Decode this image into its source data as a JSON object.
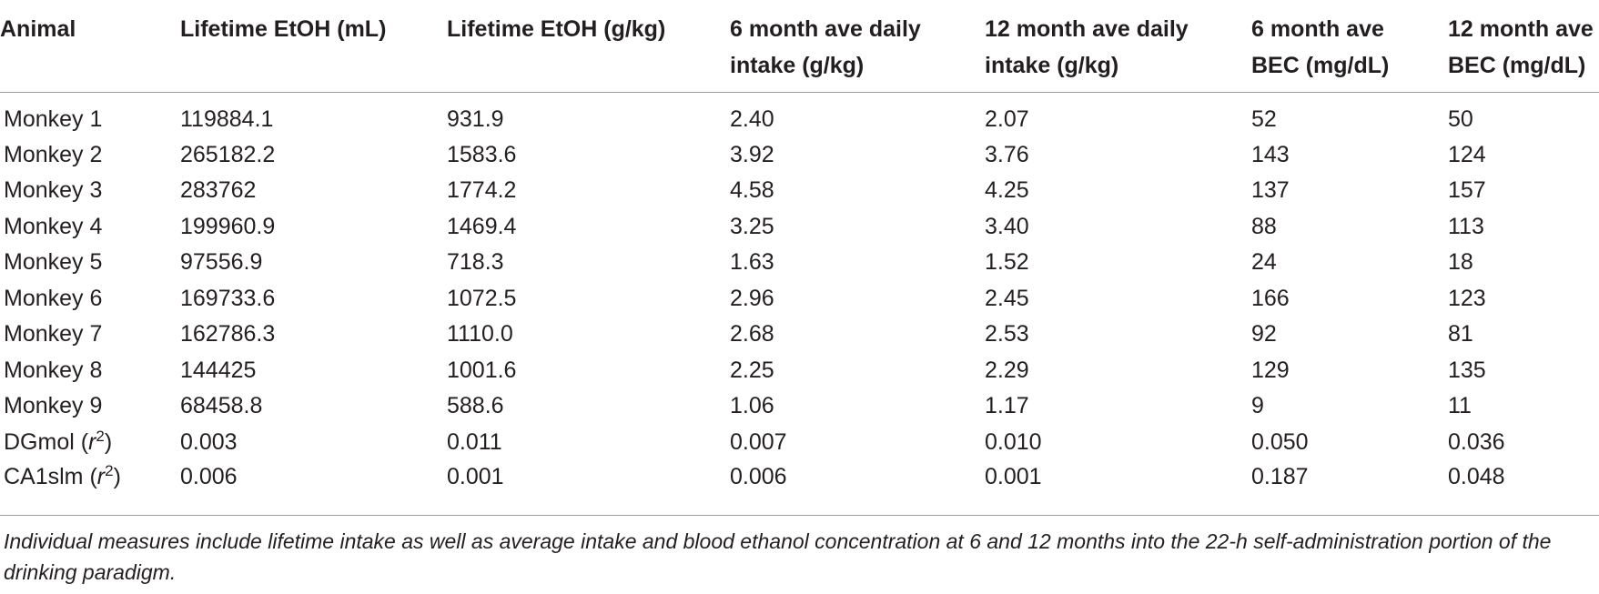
{
  "table": {
    "headers": [
      [
        "Animal"
      ],
      [
        "Lifetime EtOH (mL)"
      ],
      [
        "Lifetime EtOH (g/kg)"
      ],
      [
        "6 month ave daily",
        "intake (g/kg)"
      ],
      [
        "12 month ave daily",
        "intake (g/kg)"
      ],
      [
        "6 month ave",
        "BEC (mg/dL)"
      ],
      [
        "12 month ave",
        "BEC (mg/dL)"
      ]
    ],
    "rows": [
      [
        "Monkey 1",
        "119884.1",
        "931.9",
        "2.40",
        "2.07",
        "52",
        "50"
      ],
      [
        "Monkey 2",
        "265182.2",
        "1583.6",
        "3.92",
        "3.76",
        "143",
        "124"
      ],
      [
        "Monkey 3",
        "283762",
        "1774.2",
        "4.58",
        "4.25",
        "137",
        "157"
      ],
      [
        "Monkey 4",
        "199960.9",
        "1469.4",
        "3.25",
        "3.40",
        "88",
        "113"
      ],
      [
        "Monkey 5",
        "97556.9",
        "718.3",
        "1.63",
        "1.52",
        "24",
        "18"
      ],
      [
        "Monkey 6",
        "169733.6",
        "1072.5",
        "2.96",
        "2.45",
        "166",
        "123"
      ],
      [
        "Monkey 7",
        "162786.3",
        "1110.0",
        "2.68",
        "2.53",
        "92",
        "81"
      ],
      [
        "Monkey 8",
        "144425",
        "1001.6",
        "2.25",
        "2.29",
        "129",
        "135"
      ],
      [
        "Monkey 9",
        "68458.8",
        "588.6",
        "1.06",
        "1.17",
        "9",
        "11"
      ]
    ],
    "corr_rows": [
      {
        "label_pre": "DGmol (",
        "label_r": "r",
        "label_sup": "2",
        "label_post": ")",
        "values": [
          "0.003",
          "0.011",
          "0.007",
          "0.010",
          "0.050",
          "0.036"
        ]
      },
      {
        "label_pre": "CA1slm (",
        "label_r": "r",
        "label_sup": "2",
        "label_post": ")",
        "values": [
          "0.006",
          "0.001",
          "0.006",
          "0.001",
          "0.187",
          "0.048"
        ]
      }
    ]
  },
  "caption": "Individual measures include lifetime intake as well as average intake and blood ethanol concentration at 6 and 12 months into the 22-h self-administration portion of the drinking paradigm."
}
